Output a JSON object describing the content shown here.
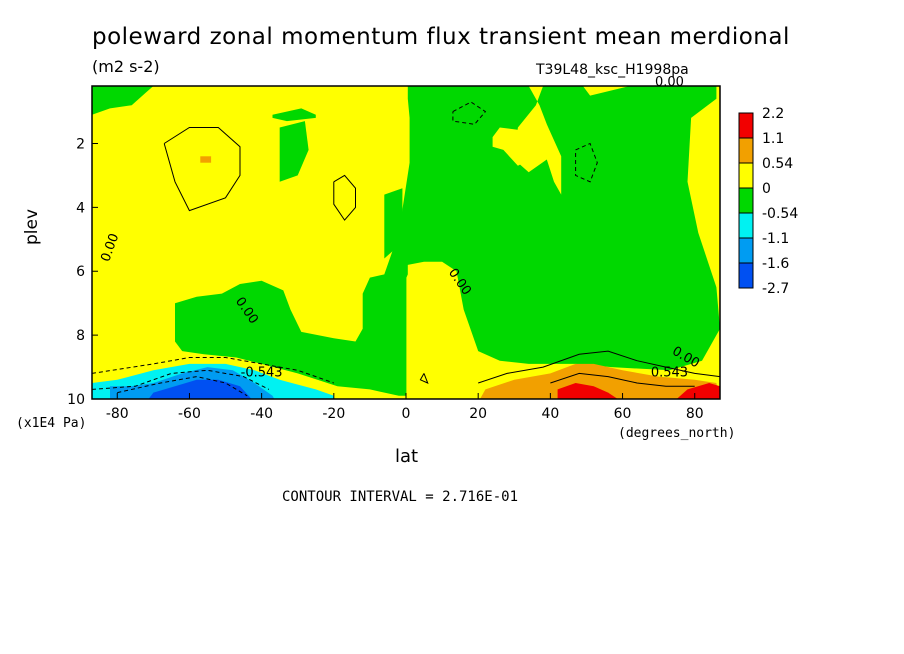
{
  "title": "poleward zonal momentum flux transient mean merdional",
  "units": "(m2 s-2)",
  "run_label": "T39L48_ksc_H1998pa",
  "contour_interval": "CONTOUR INTERVAL = 2.716E-01",
  "colors": {
    "red": "#f20000",
    "orange": "#f2a000",
    "yellow": "#ffff00",
    "green": "#00d800",
    "cyan": "#00f2f2",
    "lightblue": "#009cf2",
    "blue": "#0050f2"
  },
  "chart_data": {
    "type": "heatmap",
    "title": "poleward zonal momentum flux transient mean merdional",
    "subtitle": "(m2 s-2)",
    "xlabel": "lat",
    "x_unit": "(degrees_north)",
    "ylabel": "plev",
    "y_unit": "(x1E4 Pa)",
    "xlim": [
      -87,
      87
    ],
    "ylim": [
      10,
      0.2
    ],
    "x_ticks": [
      -80,
      -60,
      -40,
      -20,
      0,
      20,
      40,
      60,
      80
    ],
    "y_ticks": [
      2,
      4,
      6,
      8,
      10
    ],
    "contour_labels": [
      "0.00",
      "0.00",
      "0.00",
      "0.00",
      "0.00",
      "-0.543",
      "0.543"
    ],
    "colorbar": {
      "labels": [
        "2.2",
        "1.1",
        "0.54",
        "0",
        "-0.54",
        "-1.1",
        "-1.6",
        "-2.7"
      ],
      "colors": [
        "#f20000",
        "#f2a000",
        "#ffff00",
        "#00d800",
        "#00f2f2",
        "#009cf2",
        "#0050f2"
      ]
    },
    "features": [
      {
        "region": "southern high latitudes near surface",
        "lat_range": [
          -87,
          -20
        ],
        "plev_range": [
          8.6,
          10
        ],
        "value": "negative, minimum about -2.2 near -55"
      },
      {
        "region": "northern midlatitudes near surface",
        "lat_range": [
          20,
          87
        ],
        "plev_range": [
          9,
          10
        ],
        "value": "positive, maximum about 2.2 near 45-55"
      },
      {
        "region": "tropics and northern upper levels",
        "lat_range": [
          0,
          85
        ],
        "plev_range": [
          0.2,
          9
        ],
        "value": "near zero, slightly negative"
      },
      {
        "region": "southern midlatitude troposphere",
        "lat_range": [
          -85,
          0
        ],
        "plev_range": [
          0.2,
          8
        ],
        "value": "near zero, slightly positive"
      }
    ]
  }
}
